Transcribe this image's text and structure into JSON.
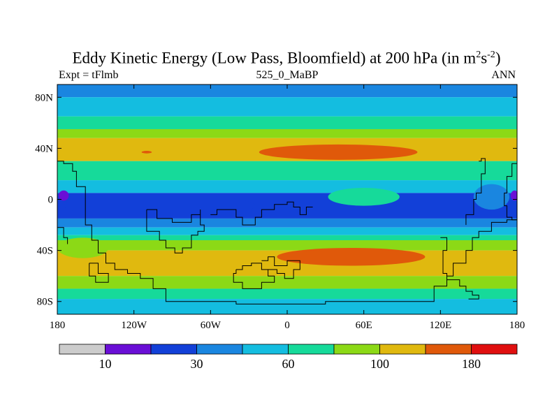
{
  "chart_data": {
    "type": "heatmap",
    "title_main": "Eddy Kinetic Energy (Low Pass, Bloomfield) at 200 hPa (in m",
    "title_sup1": "2",
    "title_mid": "s",
    "title_sup2": "-2",
    "title_end": ")",
    "left_label": "Expt = tFlmb",
    "center_label": "525_0_MaBP",
    "right_label": "ANN",
    "x_axis": {
      "range": [
        -180,
        180
      ],
      "ticks": [
        {
          "value": -180,
          "label": "180"
        },
        {
          "value": -120,
          "label": "120W"
        },
        {
          "value": -60,
          "label": "60W"
        },
        {
          "value": 0,
          "label": "0"
        },
        {
          "value": 60,
          "label": "60E"
        },
        {
          "value": 120,
          "label": "120E"
        },
        {
          "value": 180,
          "label": "180"
        }
      ]
    },
    "y_axis": {
      "range": [
        -90,
        90
      ],
      "ticks": [
        {
          "value": 80,
          "label": "80N"
        },
        {
          "value": 40,
          "label": "40N"
        },
        {
          "value": 0,
          "label": "0"
        },
        {
          "value": -40,
          "label": "40S"
        },
        {
          "value": -80,
          "label": "80S"
        }
      ]
    },
    "colorbar": {
      "colors": [
        "#cccccc",
        "#6a0fd6",
        "#1240d8",
        "#1a86e0",
        "#14bde0",
        "#16da9a",
        "#8cd916",
        "#e0b90f",
        "#e0590a",
        "#e00f0f"
      ],
      "labels": [
        {
          "boundary": 1,
          "text": "10"
        },
        {
          "boundary": 3,
          "text": "30"
        },
        {
          "boundary": 5,
          "text": "60"
        },
        {
          "boundary": 7,
          "text": "100"
        },
        {
          "boundary": 9,
          "text": "180"
        }
      ]
    },
    "field_bands": [
      {
        "lat": [
          80,
          90
        ],
        "level": 3
      },
      {
        "lat": [
          65,
          80
        ],
        "level": 4
      },
      {
        "lat": [
          55,
          65
        ],
        "level": 5
      },
      {
        "lat": [
          48,
          55
        ],
        "level": 6
      },
      {
        "lat": [
          30,
          48
        ],
        "level": 7
      },
      {
        "lat": [
          15,
          30
        ],
        "level": 5
      },
      {
        "lat": [
          5,
          15
        ],
        "level": 4
      },
      {
        "lat": [
          -15,
          5
        ],
        "level": 2
      },
      {
        "lat": [
          -22,
          -15
        ],
        "level": 3
      },
      {
        "lat": [
          -28,
          -22
        ],
        "level": 4
      },
      {
        "lat": [
          -32,
          -28
        ],
        "level": 5
      },
      {
        "lat": [
          -40,
          -32
        ],
        "level": 6
      },
      {
        "lat": [
          -60,
          -40
        ],
        "level": 7
      },
      {
        "lat": [
          -70,
          -60
        ],
        "level": 6
      },
      {
        "lat": [
          -78,
          -70
        ],
        "level": 5
      },
      {
        "lat": [
          -90,
          -78
        ],
        "level": 4
      }
    ],
    "field_blobs": [
      {
        "lon": 40,
        "lat": 37,
        "rlon": 62,
        "rlat": 6,
        "level": 8
      },
      {
        "lon": 50,
        "lat": -45,
        "rlon": 58,
        "rlat": 7,
        "level": 8
      },
      {
        "lon": -110,
        "lat": 37,
        "rlon": 4,
        "rlat": 1,
        "level": 8
      },
      {
        "lon": 60,
        "lat": 2,
        "rlon": 28,
        "rlat": 7,
        "level": 5
      },
      {
        "lon": -160,
        "lat": -38,
        "rlon": 20,
        "rlat": 8,
        "level": 6
      },
      {
        "lon": 160,
        "lat": 2,
        "rlon": 14,
        "rlat": 10,
        "level": 3
      },
      {
        "lon": -100,
        "lat": -5,
        "rlon": 75,
        "rlat": 9,
        "level": 2
      },
      {
        "lon": -175,
        "lat": 3,
        "rlon": 4,
        "rlat": 4,
        "level": 1
      },
      {
        "lon": 178,
        "lat": 3,
        "rlon": 3,
        "rlat": 4,
        "level": 1
      }
    ],
    "coastlines": [
      [
        [
          -180,
          30
        ],
        [
          -175,
          30
        ],
        [
          -175,
          28
        ],
        [
          -168,
          28
        ],
        [
          -168,
          22
        ],
        [
          -165,
          22
        ],
        [
          -165,
          10
        ],
        [
          -158,
          10
        ],
        [
          -158,
          -20
        ],
        [
          -153,
          -20
        ],
        [
          -153,
          -32
        ],
        [
          -148,
          -32
        ],
        [
          -148,
          -42
        ],
        [
          -142,
          -42
        ],
        [
          -142,
          -50
        ],
        [
          -135,
          -50
        ],
        [
          -135,
          -55
        ],
        [
          -125,
          -55
        ],
        [
          -125,
          -58
        ],
        [
          -115,
          -58
        ],
        [
          -115,
          -62
        ],
        [
          -105,
          -62
        ],
        [
          -105,
          -70
        ],
        [
          -95,
          -70
        ],
        [
          -95,
          -80
        ],
        [
          -40,
          -80
        ],
        [
          -40,
          -82
        ],
        [
          30,
          -82
        ],
        [
          30,
          -80
        ],
        [
          115,
          -80
        ],
        [
          115,
          -68
        ],
        [
          125,
          -68
        ],
        [
          125,
          -60
        ],
        [
          130,
          -60
        ],
        [
          130,
          -50
        ],
        [
          140,
          -50
        ],
        [
          140,
          -40
        ],
        [
          145,
          -40
        ],
        [
          145,
          -30
        ],
        [
          150,
          -30
        ],
        [
          150,
          -25
        ],
        [
          160,
          -25
        ],
        [
          160,
          -18
        ],
        [
          172,
          -18
        ],
        [
          172,
          -16
        ],
        [
          180,
          -16
        ]
      ],
      [
        [
          -180,
          -22
        ],
        [
          -175,
          -22
        ],
        [
          -175,
          -30
        ],
        [
          -172,
          -30
        ],
        [
          -172,
          -35
        ]
      ],
      [
        [
          -155,
          -50
        ],
        [
          -148,
          -50
        ],
        [
          -148,
          -58
        ],
        [
          -140,
          -58
        ],
        [
          -140,
          -65
        ],
        [
          -150,
          -65
        ],
        [
          -150,
          -60
        ],
        [
          -155,
          -60
        ],
        [
          -155,
          -50
        ]
      ],
      [
        [
          -110,
          -8
        ],
        [
          -102,
          -8
        ],
        [
          -102,
          -15
        ],
        [
          -90,
          -15
        ],
        [
          -90,
          -18
        ],
        [
          -75,
          -18
        ],
        [
          -75,
          -12
        ],
        [
          -68,
          -12
        ],
        [
          -68,
          -8
        ],
        [
          -68,
          -20
        ],
        [
          -65,
          -20
        ],
        [
          -65,
          -25
        ],
        [
          -70,
          -25
        ],
        [
          -70,
          -28
        ],
        [
          -75,
          -28
        ],
        [
          -75,
          -38
        ],
        [
          -82,
          -38
        ],
        [
          -82,
          -42
        ],
        [
          -88,
          -42
        ],
        [
          -88,
          -38
        ],
        [
          -95,
          -38
        ],
        [
          -95,
          -32
        ],
        [
          -100,
          -32
        ],
        [
          -100,
          -25
        ],
        [
          -110,
          -25
        ],
        [
          -110,
          -8
        ]
      ],
      [
        [
          -60,
          -12
        ],
        [
          -55,
          -12
        ],
        [
          -55,
          -8
        ],
        [
          -40,
          -8
        ],
        [
          -40,
          -14
        ],
        [
          -35,
          -14
        ],
        [
          -35,
          -20
        ],
        [
          -25,
          -20
        ],
        [
          -25,
          -14
        ],
        [
          -20,
          -14
        ],
        [
          -20,
          -8
        ],
        [
          -10,
          -8
        ],
        [
          -10,
          -4
        ],
        [
          0,
          -4
        ],
        [
          0,
          -2
        ],
        [
          5,
          -2
        ],
        [
          5,
          -6
        ],
        [
          10,
          -6
        ],
        [
          10,
          -12
        ],
        [
          15,
          -12
        ],
        [
          15,
          -6
        ],
        [
          20,
          -6
        ]
      ],
      [
        [
          -40,
          -55
        ],
        [
          -35,
          -55
        ],
        [
          -35,
          -52
        ],
        [
          -28,
          -52
        ],
        [
          -28,
          -50
        ],
        [
          -20,
          -50
        ],
        [
          -20,
          -55
        ],
        [
          -15,
          -55
        ],
        [
          -15,
          -60
        ],
        [
          -10,
          -60
        ],
        [
          -10,
          -65
        ],
        [
          -20,
          -65
        ],
        [
          -20,
          -70
        ],
        [
          -35,
          -70
        ],
        [
          -35,
          -65
        ],
        [
          -42,
          -65
        ],
        [
          -42,
          -58
        ],
        [
          -40,
          -58
        ],
        [
          -40,
          -55
        ]
      ],
      [
        [
          -20,
          -48
        ],
        [
          -15,
          -48
        ],
        [
          -15,
          -45
        ],
        [
          -10,
          -45
        ],
        [
          -10,
          -52
        ],
        [
          0,
          -52
        ],
        [
          0,
          -48
        ],
        [
          10,
          -48
        ],
        [
          10,
          -55
        ],
        [
          5,
          -55
        ],
        [
          5,
          -62
        ],
        [
          -2,
          -62
        ],
        [
          -2,
          -58
        ],
        [
          -8,
          -58
        ],
        [
          -8,
          -55
        ],
        [
          -20,
          -55
        ]
      ],
      [
        [
          150,
          30
        ],
        [
          152,
          30
        ],
        [
          152,
          32
        ],
        [
          155,
          32
        ],
        [
          155,
          20
        ],
        [
          152,
          20
        ],
        [
          152,
          5
        ],
        [
          148,
          5
        ],
        [
          148,
          0
        ],
        [
          146,
          0
        ],
        [
          146,
          -12
        ],
        [
          140,
          -12
        ],
        [
          140,
          -20
        ]
      ],
      [
        [
          180,
          28
        ],
        [
          176,
          28
        ],
        [
          176,
          18
        ],
        [
          172,
          18
        ],
        [
          172,
          5
        ],
        [
          170,
          5
        ],
        [
          170,
          -5
        ],
        [
          172,
          -5
        ],
        [
          172,
          -14
        ],
        [
          176,
          -14
        ],
        [
          176,
          -16
        ],
        [
          180,
          -16
        ]
      ],
      [
        [
          120,
          -30
        ],
        [
          125,
          -30
        ],
        [
          125,
          -40
        ],
        [
          122,
          -40
        ],
        [
          122,
          -58
        ],
        [
          125,
          -58
        ],
        [
          125,
          -63
        ],
        [
          135,
          -63
        ],
        [
          135,
          -68
        ],
        [
          140,
          -68
        ],
        [
          140,
          -72
        ],
        [
          145,
          -72
        ],
        [
          145,
          -75
        ],
        [
          150,
          -75
        ],
        [
          150,
          -78
        ],
        [
          142,
          -78
        ]
      ]
    ]
  }
}
